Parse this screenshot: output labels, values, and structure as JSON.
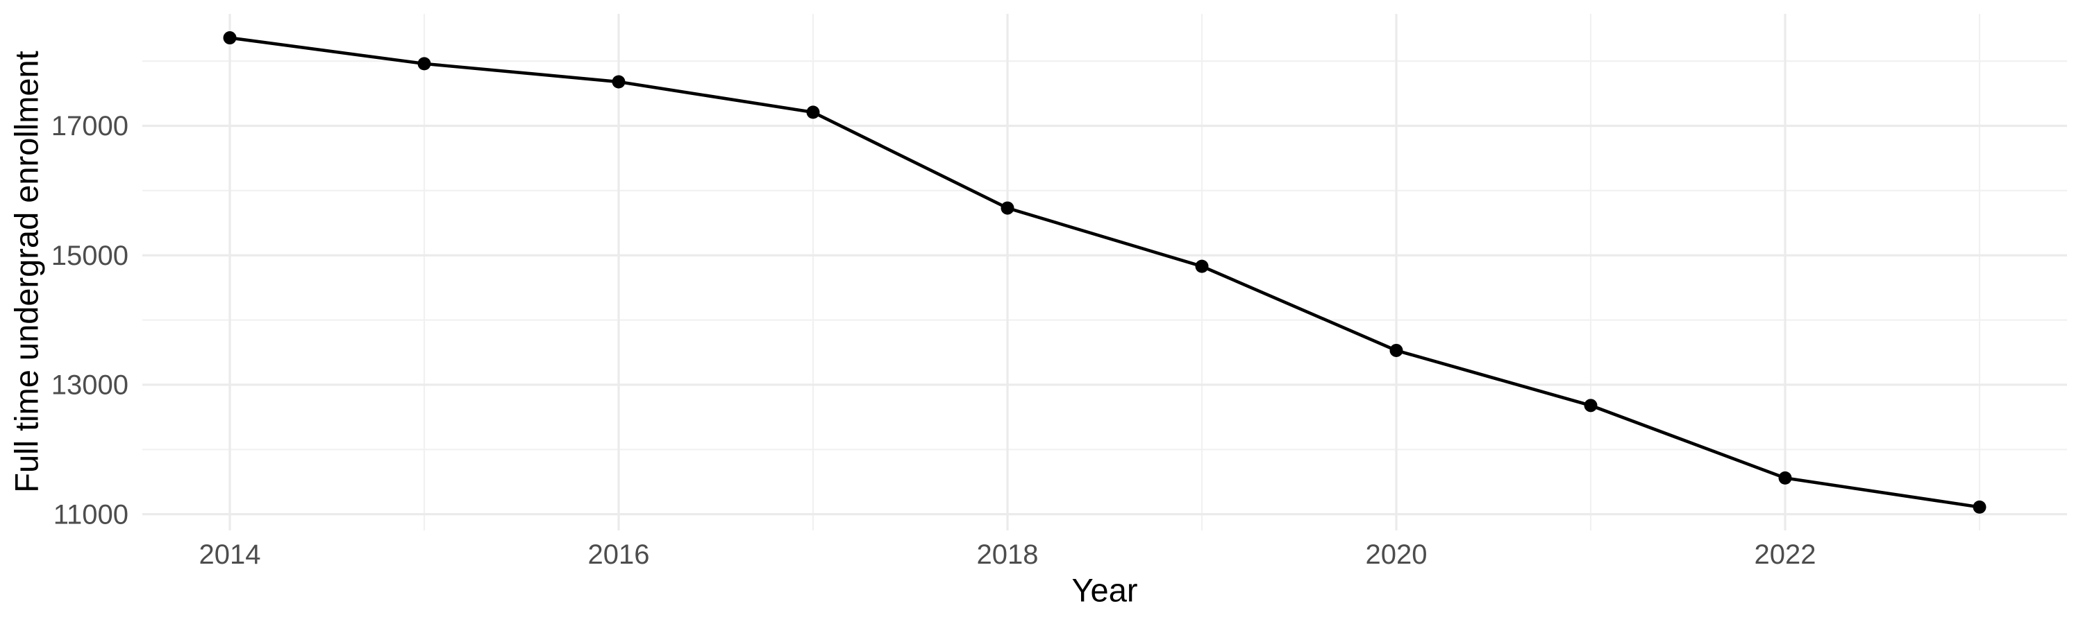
{
  "chart_data": {
    "type": "line",
    "title": "",
    "xlabel": "Year",
    "ylabel": "Full time undergrad enrollment",
    "x": [
      2014,
      2015,
      2016,
      2017,
      2018,
      2019,
      2020,
      2021,
      2022,
      2023
    ],
    "values": [
      18360,
      17960,
      17680,
      17210,
      15730,
      14830,
      13530,
      12680,
      11560,
      11110
    ],
    "series_name": "Full time undergrad enrollment",
    "xlim": [
      2013.55,
      2023.45
    ],
    "ylim": [
      10750,
      18730
    ],
    "x_major_ticks": [
      2014,
      2016,
      2018,
      2020,
      2022
    ],
    "x_minor_gridlines": [
      2015,
      2017,
      2019,
      2021,
      2023
    ],
    "y_major_ticks": [
      11000,
      13000,
      15000,
      17000
    ],
    "y_minor_gridlines": [
      12000,
      14000,
      16000,
      18000
    ],
    "grid": "on",
    "legend": "none",
    "point_marker": "filled-circle",
    "colors": {
      "background": "#FFFFFF",
      "grid_major": "#EBEBEB",
      "grid_minor": "#F1F1F1",
      "tick_text": "#4D4D4D",
      "axis_title_text": "#000000",
      "line": "#000000",
      "point": "#000000"
    }
  }
}
